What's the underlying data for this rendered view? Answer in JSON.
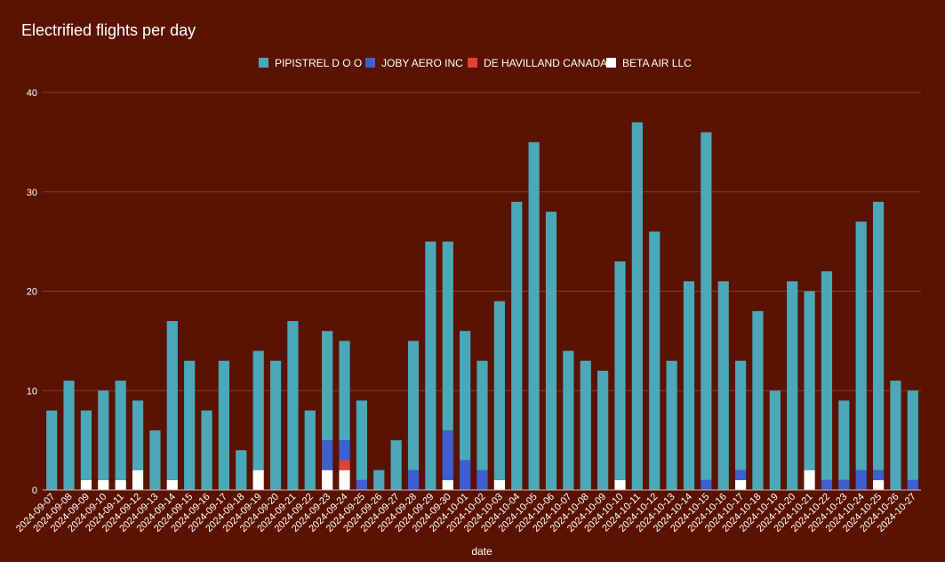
{
  "chart_data": {
    "type": "bar",
    "stacked": true,
    "title": "Electrified flights per day",
    "xlabel": "date",
    "ylabel": "",
    "ylim": [
      0,
      40
    ],
    "yticks": [
      0,
      10,
      20,
      30,
      40
    ],
    "grid": true,
    "legend_position": "top",
    "categories": [
      "2024-09-07",
      "2024-09-08",
      "2024-09-09",
      "2024-09-10",
      "2024-09-11",
      "2024-09-12",
      "2024-09-13",
      "2024-09-14",
      "2024-09-15",
      "2024-09-16",
      "2024-09-17",
      "2024-09-18",
      "2024-09-19",
      "2024-09-20",
      "2024-09-21",
      "2024-09-22",
      "2024-09-23",
      "2024-09-24",
      "2024-09-25",
      "2024-09-26",
      "2024-09-27",
      "2024-09-28",
      "2024-09-29",
      "2024-09-30",
      "2024-10-01",
      "2024-10-02",
      "2024-10-03",
      "2024-10-04",
      "2024-10-05",
      "2024-10-06",
      "2024-10-07",
      "2024-10-08",
      "2024-10-09",
      "2024-10-10",
      "2024-10-11",
      "2024-10-12",
      "2024-10-13",
      "2024-10-14",
      "2024-10-15",
      "2024-10-16",
      "2024-10-17",
      "2024-10-18",
      "2024-10-19",
      "2024-10-20",
      "2024-10-21",
      "2024-10-22",
      "2024-10-23",
      "2024-10-24",
      "2024-10-25",
      "2024-10-26",
      "2024-10-27"
    ],
    "series": [
      {
        "name": "BETA AIR LLC",
        "color": "#ffffff",
        "values": [
          0,
          0,
          1,
          1,
          1,
          2,
          0,
          1,
          0,
          0,
          0,
          0,
          2,
          0,
          0,
          0,
          2,
          2,
          0,
          0,
          0,
          0,
          0,
          1,
          0,
          0,
          1,
          0,
          0,
          0,
          0,
          0,
          0,
          1,
          0,
          0,
          0,
          0,
          0,
          0,
          1,
          0,
          0,
          0,
          2,
          0,
          0,
          0,
          1,
          0,
          0
        ]
      },
      {
        "name": "DE HAVILLAND CANADA",
        "color": "#db4437",
        "values": [
          0,
          0,
          0,
          0,
          0,
          0,
          0,
          0,
          0,
          0,
          0,
          0,
          0,
          0,
          0,
          0,
          0,
          1,
          0,
          0,
          0,
          0,
          0,
          0,
          0,
          0,
          0,
          0,
          0,
          0,
          0,
          0,
          0,
          0,
          0,
          0,
          0,
          0,
          0,
          0,
          0,
          0,
          0,
          0,
          0,
          0,
          0,
          0,
          0,
          0,
          0
        ]
      },
      {
        "name": "JOBY AERO INC",
        "color": "#3d5fd0",
        "values": [
          0,
          0,
          0,
          0,
          0,
          0,
          0,
          0,
          0,
          0,
          0,
          0,
          0,
          0,
          0,
          0,
          3,
          2,
          1,
          0,
          0,
          2,
          0,
          5,
          3,
          2,
          0,
          0,
          0,
          0,
          0,
          0,
          0,
          0,
          0,
          0,
          0,
          0,
          1,
          0,
          1,
          0,
          0,
          0,
          0,
          1,
          1,
          2,
          1,
          0,
          1
        ]
      },
      {
        "name": "PIPISTREL D O O",
        "color": "#4aa8b8",
        "values": [
          8,
          11,
          7,
          9,
          10,
          7,
          6,
          16,
          13,
          8,
          13,
          4,
          12,
          13,
          17,
          8,
          11,
          10,
          8,
          2,
          5,
          13,
          25,
          19,
          13,
          11,
          18,
          29,
          35,
          28,
          14,
          13,
          12,
          22,
          37,
          26,
          13,
          21,
          35,
          21,
          11,
          18,
          10,
          21,
          18,
          21,
          8,
          25,
          27,
          11,
          9
        ]
      }
    ],
    "legend_order": [
      "PIPISTREL D O O",
      "JOBY AERO INC",
      "DE HAVILLAND CANADA",
      "BETA AIR LLC"
    ],
    "gridline_color": "#8a3a2a",
    "baseline_color": "#d9b3ad"
  }
}
